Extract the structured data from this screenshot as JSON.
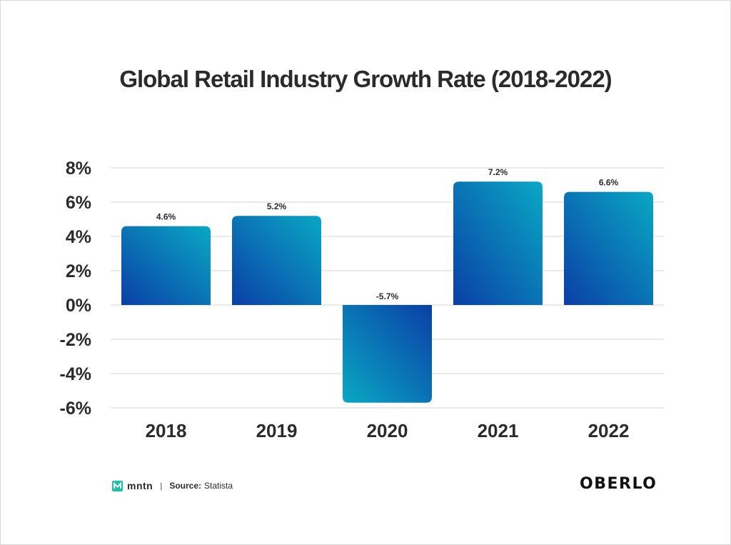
{
  "chart_data": {
    "type": "bar",
    "title": "Global Retail Industry Growth Rate (2018-2022)",
    "categories": [
      "2018",
      "2019",
      "2020",
      "2021",
      "2022"
    ],
    "values": [
      4.6,
      5.2,
      -5.7,
      7.2,
      6.6
    ],
    "value_labels": [
      "4.6%",
      "5.2%",
      "-5.7%",
      "7.2%",
      "6.6%"
    ],
    "ylim": [
      -6,
      8
    ],
    "yticks": [
      8,
      6,
      4,
      2,
      0,
      -2,
      -4,
      -6
    ],
    "ytick_labels": [
      "8%",
      "6%",
      "4%",
      "2%",
      "0%",
      "-2%",
      "-4%",
      "-6%"
    ],
    "xlabel": "",
    "ylabel": "",
    "grid": true,
    "legend": "none"
  },
  "footer": {
    "brand": "mntn",
    "separator": "|",
    "source_label": "Source:",
    "source_value": "Statista",
    "logo": "OBERLO"
  },
  "colors": {
    "bar_dark": "#0a3fa6",
    "bar_light": "#0aa8c4",
    "grid": "#d6d6d6",
    "text": "#2b2b2b",
    "mntn_accent": "#19c3a3"
  }
}
